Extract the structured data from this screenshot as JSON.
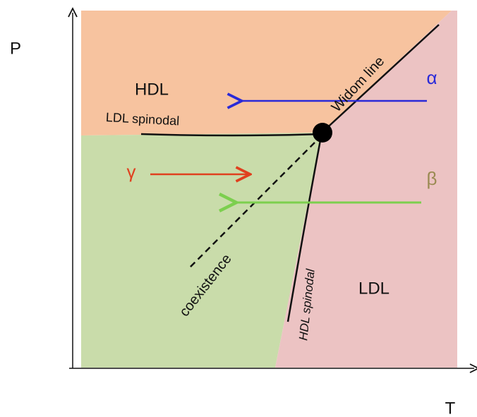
{
  "axes": {
    "y_label": "P",
    "x_label": "T"
  },
  "regions": {
    "hdl": "HDL",
    "ldl": "LDL"
  },
  "lines": {
    "ldl_spinodal": "LDL spinodal",
    "widom": "Widom line",
    "coexistence": "coexistence",
    "hdl_spinodal": "HDL spinodal"
  },
  "paths": {
    "alpha": "α",
    "beta": "β",
    "gamma": "γ"
  }
}
